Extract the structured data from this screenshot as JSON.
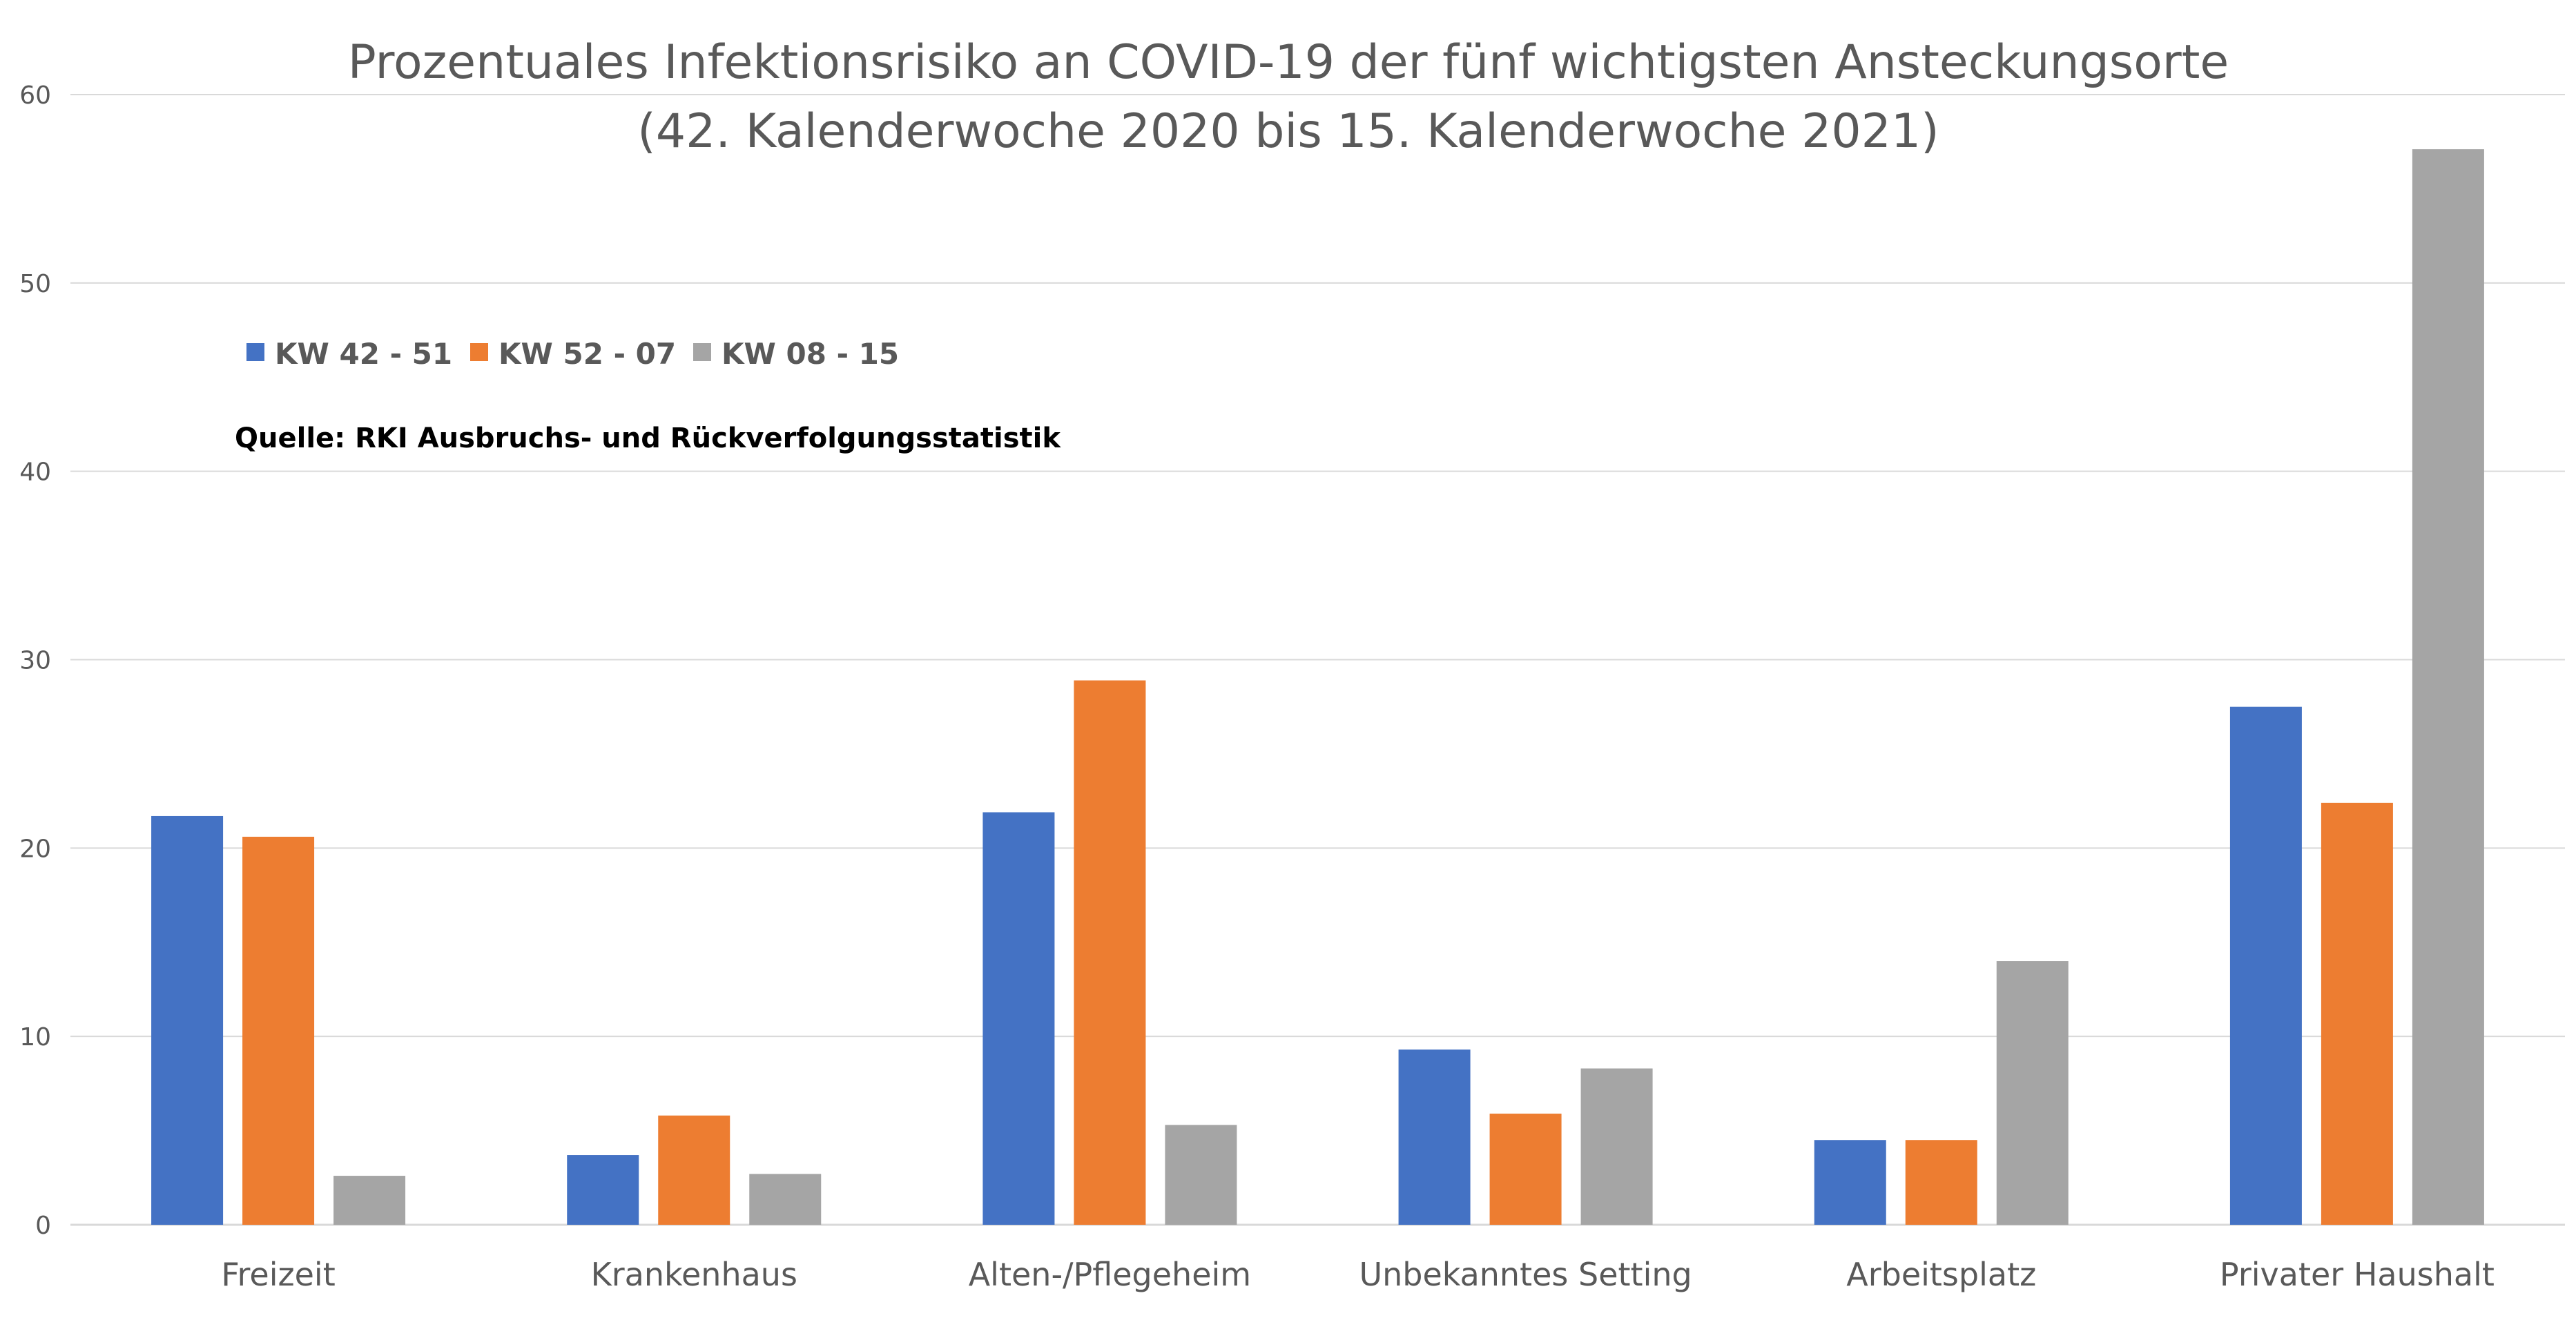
{
  "chart_data": {
    "type": "bar",
    "title": "Prozentuales Infektionsrisiko an COVID-19 der fünf wichtigsten Ansteckungsorte",
    "subtitle": "(42. Kalenderwoche 2020 bis 15. Kalenderwoche 2021)",
    "annotation": "Quelle: RKI Ausbruchs- und Rückverfolgungsstatistik",
    "categories": [
      "Freizeit",
      "Krankenhaus",
      "Alten-/Pflegeheim",
      "Unbekanntes Setting",
      "Arbeitsplatz",
      "Privater Haushalt"
    ],
    "series": [
      {
        "name": "KW 42 - 51",
        "color": "#4472c4",
        "values": [
          21.7,
          3.7,
          21.9,
          9.3,
          4.5,
          27.5
        ]
      },
      {
        "name": "KW 52 - 07",
        "color": "#ed7d31",
        "values": [
          20.6,
          5.8,
          28.9,
          5.9,
          4.5,
          22.4
        ]
      },
      {
        "name": "KW 08 - 15",
        "color": "#a5a5a5",
        "values": [
          2.6,
          2.7,
          5.3,
          8.3,
          14.0,
          57.1
        ]
      }
    ],
    "y_ticks": [
      "0",
      "10",
      "20",
      "30",
      "40",
      "50",
      "60"
    ],
    "ylim": [
      0,
      60
    ],
    "grid": true,
    "legend_position": "top-left"
  }
}
